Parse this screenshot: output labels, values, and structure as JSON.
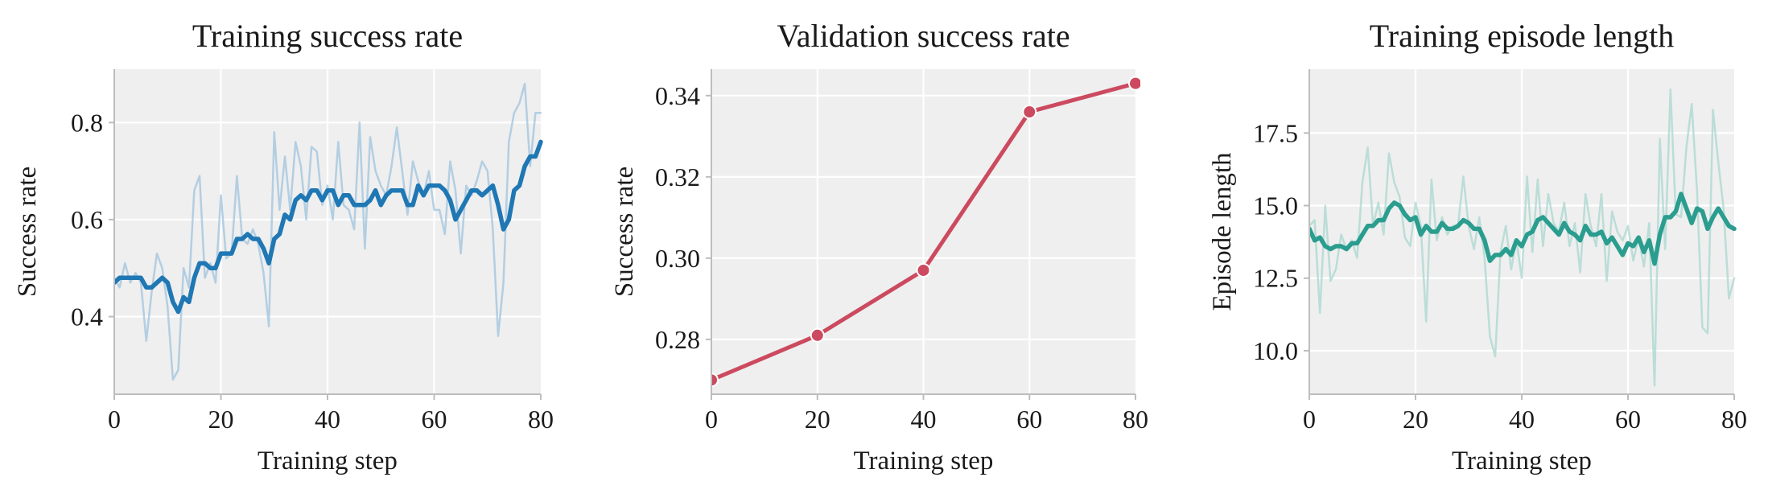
{
  "chart_data": [
    {
      "type": "line",
      "title": "Training success rate",
      "xlabel": "Training step",
      "ylabel": "Success rate",
      "xlim": [
        0,
        80
      ],
      "ylim": [
        0.24,
        0.91
      ],
      "xticks": [
        0,
        20,
        40,
        60,
        80
      ],
      "yticks": [
        0.4,
        0.6,
        0.8
      ],
      "ytick_labels": [
        "0.4",
        "0.6",
        "0.8"
      ],
      "grid": true,
      "series": [
        {
          "color": "#9fc3dd",
          "style": "raw",
          "x": [
            0,
            1,
            2,
            3,
            4,
            5,
            6,
            7,
            8,
            9,
            10,
            11,
            12,
            13,
            14,
            15,
            16,
            17,
            18,
            19,
            20,
            21,
            22,
            23,
            24,
            25,
            26,
            27,
            28,
            29,
            30,
            31,
            32,
            33,
            34,
            35,
            36,
            37,
            38,
            39,
            40,
            41,
            42,
            43,
            44,
            45,
            46,
            47,
            48,
            49,
            50,
            51,
            52,
            53,
            54,
            55,
            56,
            57,
            58,
            59,
            60,
            61,
            62,
            63,
            64,
            65,
            66,
            67,
            68,
            69,
            70,
            71,
            72,
            73,
            74,
            75,
            76,
            77,
            78,
            79,
            80
          ],
          "values": [
            0.48,
            0.46,
            0.51,
            0.47,
            0.49,
            0.47,
            0.35,
            0.45,
            0.53,
            0.5,
            0.42,
            0.27,
            0.29,
            0.5,
            0.46,
            0.66,
            0.69,
            0.48,
            0.51,
            0.47,
            0.65,
            0.52,
            0.53,
            0.69,
            0.56,
            0.55,
            0.58,
            0.55,
            0.49,
            0.38,
            0.78,
            0.62,
            0.73,
            0.62,
            0.76,
            0.71,
            0.6,
            0.75,
            0.74,
            0.63,
            0.67,
            0.6,
            0.76,
            0.63,
            0.62,
            0.58,
            0.8,
            0.54,
            0.77,
            0.7,
            0.67,
            0.65,
            0.71,
            0.79,
            0.7,
            0.61,
            0.72,
            0.68,
            0.65,
            0.7,
            0.62,
            0.62,
            0.57,
            0.72,
            0.66,
            0.53,
            0.67,
            0.65,
            0.68,
            0.72,
            0.7,
            0.58,
            0.36,
            0.47,
            0.76,
            0.82,
            0.84,
            0.88,
            0.71,
            0.82,
            0.82
          ]
        },
        {
          "color": "#1f77b4",
          "style": "smoothed",
          "x": [
            0,
            1,
            2,
            3,
            4,
            5,
            6,
            7,
            8,
            9,
            10,
            11,
            12,
            13,
            14,
            15,
            16,
            17,
            18,
            19,
            20,
            21,
            22,
            23,
            24,
            25,
            26,
            27,
            28,
            29,
            30,
            31,
            32,
            33,
            34,
            35,
            36,
            37,
            38,
            39,
            40,
            41,
            42,
            43,
            44,
            45,
            46,
            47,
            48,
            49,
            50,
            51,
            52,
            53,
            54,
            55,
            56,
            57,
            58,
            59,
            60,
            61,
            62,
            63,
            64,
            65,
            66,
            67,
            68,
            69,
            70,
            71,
            72,
            73,
            74,
            75,
            76,
            77,
            78,
            79,
            80
          ],
          "values": [
            0.47,
            0.48,
            0.48,
            0.48,
            0.48,
            0.48,
            0.46,
            0.46,
            0.47,
            0.48,
            0.47,
            0.43,
            0.41,
            0.44,
            0.43,
            0.48,
            0.51,
            0.51,
            0.5,
            0.5,
            0.53,
            0.53,
            0.53,
            0.56,
            0.56,
            0.57,
            0.56,
            0.56,
            0.54,
            0.51,
            0.56,
            0.57,
            0.61,
            0.6,
            0.64,
            0.65,
            0.64,
            0.66,
            0.66,
            0.64,
            0.66,
            0.66,
            0.63,
            0.65,
            0.65,
            0.63,
            0.63,
            0.63,
            0.64,
            0.66,
            0.63,
            0.65,
            0.66,
            0.66,
            0.66,
            0.63,
            0.63,
            0.67,
            0.65,
            0.67,
            0.67,
            0.67,
            0.66,
            0.64,
            0.6,
            0.62,
            0.64,
            0.66,
            0.66,
            0.65,
            0.66,
            0.67,
            0.63,
            0.58,
            0.6,
            0.66,
            0.67,
            0.71,
            0.73,
            0.73,
            0.76
          ]
        }
      ]
    },
    {
      "type": "line",
      "title": "Validation success rate",
      "xlabel": "Training step",
      "ylabel": "Success rate",
      "xlim": [
        0,
        80
      ],
      "ylim": [
        0.2665,
        0.3465
      ],
      "xticks": [
        0,
        20,
        40,
        60,
        80
      ],
      "yticks": [
        0.28,
        0.3,
        0.32,
        0.34
      ],
      "ytick_labels": [
        "0.28",
        "0.30",
        "0.32",
        "0.34"
      ],
      "grid": true,
      "series": [
        {
          "color": "#cc4a5f",
          "style": "markers",
          "x": [
            0,
            20,
            40,
            60,
            80
          ],
          "values": [
            0.27,
            0.281,
            0.297,
            0.336,
            0.343
          ]
        }
      ]
    },
    {
      "type": "line",
      "title": "Training episode length",
      "xlabel": "Training step",
      "ylabel": "Episode length",
      "xlim": [
        0,
        80
      ],
      "ylim": [
        8.5,
        19.7
      ],
      "xticks": [
        0,
        20,
        40,
        60,
        80
      ],
      "yticks": [
        10.0,
        12.5,
        15.0,
        17.5
      ],
      "ytick_labels": [
        "10.0",
        "12.5",
        "15.0",
        "17.5"
      ],
      "grid": true,
      "series": [
        {
          "color": "#a9d7cf",
          "style": "raw",
          "x": [
            0,
            1,
            2,
            3,
            4,
            5,
            6,
            7,
            8,
            9,
            10,
            11,
            12,
            13,
            14,
            15,
            16,
            17,
            18,
            19,
            20,
            21,
            22,
            23,
            24,
            25,
            26,
            27,
            28,
            29,
            30,
            31,
            32,
            33,
            34,
            35,
            36,
            37,
            38,
            39,
            40,
            41,
            42,
            43,
            44,
            45,
            46,
            47,
            48,
            49,
            50,
            51,
            52,
            53,
            54,
            55,
            56,
            57,
            58,
            59,
            60,
            61,
            62,
            63,
            64,
            65,
            66,
            67,
            68,
            69,
            70,
            71,
            72,
            73,
            74,
            75,
            76,
            77,
            78,
            79,
            80
          ],
          "values": [
            14.3,
            14.5,
            11.3,
            15.0,
            12.4,
            12.8,
            14.0,
            13.5,
            13.8,
            13.2,
            15.8,
            17.0,
            14.3,
            15.1,
            14.0,
            16.8,
            15.8,
            15.3,
            13.9,
            13.6,
            15.1,
            14.3,
            11.0,
            15.9,
            13.8,
            14.6,
            14.0,
            14.3,
            14.3,
            16.0,
            14.3,
            13.5,
            14.6,
            13.2,
            10.5,
            9.8,
            13.4,
            14.3,
            12.8,
            13.8,
            12.5,
            16.0,
            13.4,
            15.9,
            13.6,
            15.4,
            14.4,
            14.1,
            15.1,
            13.6,
            14.4,
            12.7,
            15.4,
            14.3,
            13.6,
            15.4,
            12.4,
            14.8,
            14.1,
            13.8,
            14.3,
            13.1,
            13.9,
            12.9,
            14.4,
            8.8,
            17.3,
            13.5,
            19.0,
            14.7,
            14.6,
            17.0,
            18.5,
            15.5,
            10.8,
            10.6,
            18.3,
            16.5,
            14.9,
            11.8,
            12.5
          ]
        },
        {
          "color": "#2a9d8f",
          "style": "smoothed",
          "x": [
            0,
            1,
            2,
            3,
            4,
            5,
            6,
            7,
            8,
            9,
            10,
            11,
            12,
            13,
            14,
            15,
            16,
            17,
            18,
            19,
            20,
            21,
            22,
            23,
            24,
            25,
            26,
            27,
            28,
            29,
            30,
            31,
            32,
            33,
            34,
            35,
            36,
            37,
            38,
            39,
            40,
            41,
            42,
            43,
            44,
            45,
            46,
            47,
            48,
            49,
            50,
            51,
            52,
            53,
            54,
            55,
            56,
            57,
            58,
            59,
            60,
            61,
            62,
            63,
            64,
            65,
            66,
            67,
            68,
            69,
            70,
            71,
            72,
            73,
            74,
            75,
            76,
            77,
            78,
            79,
            80
          ],
          "values": [
            14.2,
            13.8,
            13.9,
            13.6,
            13.5,
            13.6,
            13.6,
            13.5,
            13.7,
            13.7,
            14.0,
            14.3,
            14.3,
            14.5,
            14.5,
            14.9,
            15.1,
            15.0,
            14.7,
            14.5,
            14.6,
            14.0,
            14.3,
            14.1,
            14.1,
            14.4,
            14.2,
            14.2,
            14.3,
            14.5,
            14.4,
            14.2,
            14.2,
            13.8,
            13.1,
            13.3,
            13.3,
            13.5,
            13.3,
            13.8,
            13.6,
            14.0,
            14.1,
            14.5,
            14.6,
            14.4,
            14.2,
            14.0,
            14.4,
            14.1,
            14.0,
            13.8,
            14.3,
            14.0,
            14.0,
            14.1,
            13.7,
            13.9,
            13.6,
            13.3,
            13.7,
            13.6,
            13.9,
            13.4,
            13.8,
            13.0,
            14.0,
            14.6,
            14.6,
            14.8,
            15.4,
            14.9,
            14.4,
            14.9,
            14.8,
            14.2,
            14.6,
            14.9,
            14.6,
            14.3,
            14.2
          ]
        }
      ]
    }
  ]
}
